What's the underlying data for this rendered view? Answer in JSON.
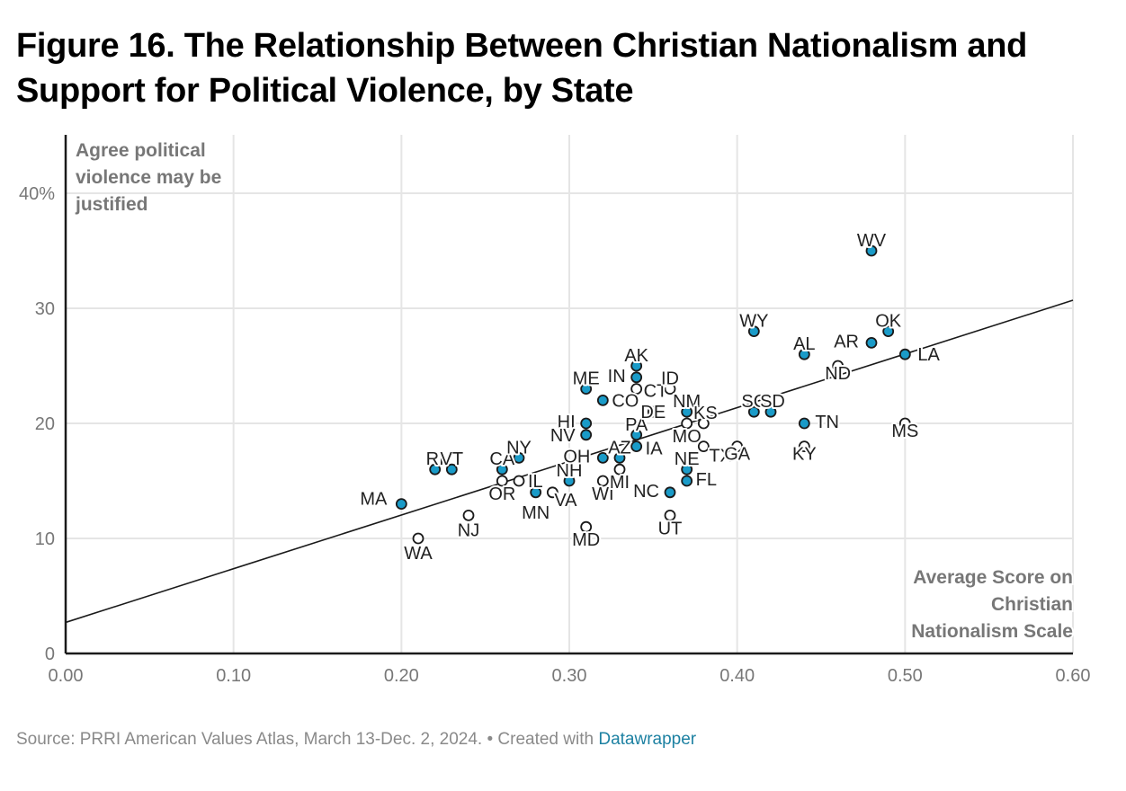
{
  "title": "Figure 16. The Relationship Between Christian Nationalism and Support for Political Violence, by State",
  "footer": {
    "source": "Source: PRRI American Values Atlas, March 13-Dec. 2, 2024.",
    "separator": " • ",
    "created_with": "Created with ",
    "link_text": "Datawrapper"
  },
  "colors": {
    "point_fill": "#1a9bc8",
    "point_stroke": "#1a1a1a",
    "grid": "#e5e5e5",
    "axis": "#1a1a1a",
    "trend": "#1a1a1a"
  },
  "chart_data": {
    "type": "scatter",
    "title": "Figure 16. The Relationship Between Christian Nationalism and Support for Political Violence, by State",
    "xlabel": "Average Score on Christian Nationalism Scale",
    "ylabel": "Agree political violence may be justified",
    "xlim": [
      0,
      0.6
    ],
    "ylim": [
      0,
      45
    ],
    "x_ticks": [
      0,
      0.1,
      0.2,
      0.3,
      0.4,
      0.5,
      0.6
    ],
    "x_tick_labels": [
      "0.00",
      "0.10",
      "0.20",
      "0.30",
      "0.40",
      "0.50",
      "0.60"
    ],
    "y_ticks": [
      0,
      10,
      20,
      30,
      40
    ],
    "y_tick_labels": [
      "0",
      "10",
      "20",
      "30",
      "40%"
    ],
    "grid": true,
    "trendline": {
      "x": [
        0,
        0.6
      ],
      "y": [
        2.7,
        30.7
      ]
    },
    "points": [
      {
        "state": "MA",
        "x": 0.2,
        "y": 13,
        "filled": true,
        "lx": -16,
        "ly": -6,
        "anchor": "end"
      },
      {
        "state": "WA",
        "x": 0.21,
        "y": 10,
        "filled": false,
        "lx": 0,
        "ly": 16,
        "anchor": "middle"
      },
      {
        "state": "RI",
        "x": 0.22,
        "y": 16,
        "filled": true,
        "lx": 0,
        "ly": -12,
        "anchor": "middle"
      },
      {
        "state": "VT",
        "x": 0.23,
        "y": 16,
        "filled": true,
        "lx": 0,
        "ly": -12,
        "anchor": "middle"
      },
      {
        "state": "NJ",
        "x": 0.24,
        "y": 12,
        "filled": false,
        "lx": 0,
        "ly": 16,
        "anchor": "middle"
      },
      {
        "state": "CA",
        "x": 0.26,
        "y": 16,
        "filled": true,
        "lx": 0,
        "ly": -12,
        "anchor": "middle"
      },
      {
        "state": "OR",
        "x": 0.26,
        "y": 15,
        "filled": false,
        "lx": 0,
        "ly": 14,
        "anchor": "middle"
      },
      {
        "state": "NY",
        "x": 0.27,
        "y": 17,
        "filled": true,
        "lx": 0,
        "ly": -12,
        "anchor": "middle"
      },
      {
        "state": "IL",
        "x": 0.27,
        "y": 15,
        "filled": false,
        "lx": 10,
        "ly": 0,
        "anchor": "start"
      },
      {
        "state": "MN",
        "x": 0.28,
        "y": 14,
        "filled": true,
        "lx": 0,
        "ly": 22,
        "anchor": "middle"
      },
      {
        "state": "VA",
        "x": 0.29,
        "y": 14,
        "filled": false,
        "lx": 2,
        "ly": 8,
        "anchor": "start"
      },
      {
        "state": "NH",
        "x": 0.3,
        "y": 15,
        "filled": true,
        "lx": 0,
        "ly": -12,
        "anchor": "middle"
      },
      {
        "state": "MD",
        "x": 0.31,
        "y": 11,
        "filled": false,
        "lx": 0,
        "ly": 14,
        "anchor": "middle"
      },
      {
        "state": "ME",
        "x": 0.31,
        "y": 23,
        "filled": true,
        "lx": 0,
        "ly": -12,
        "anchor": "middle"
      },
      {
        "state": "HI",
        "x": 0.31,
        "y": 20,
        "filled": true,
        "lx": -12,
        "ly": -2,
        "anchor": "end"
      },
      {
        "state": "NV",
        "x": 0.31,
        "y": 19,
        "filled": true,
        "lx": -12,
        "ly": 0,
        "anchor": "end"
      },
      {
        "state": "OH",
        "x": 0.32,
        "y": 17,
        "filled": true,
        "lx": -14,
        "ly": -2,
        "anchor": "end"
      },
      {
        "state": "WI",
        "x": 0.32,
        "y": 15,
        "filled": false,
        "lx": 0,
        "ly": 14,
        "anchor": "middle"
      },
      {
        "state": "CO",
        "x": 0.32,
        "y": 22,
        "filled": true,
        "lx": 10,
        "ly": 0,
        "anchor": "start"
      },
      {
        "state": "AZ",
        "x": 0.33,
        "y": 17,
        "filled": true,
        "lx": 0,
        "ly": -12,
        "anchor": "middle"
      },
      {
        "state": "MI",
        "x": 0.33,
        "y": 16,
        "filled": false,
        "lx": 0,
        "ly": 14,
        "anchor": "middle"
      },
      {
        "state": "AK",
        "x": 0.34,
        "y": 25,
        "filled": true,
        "lx": 0,
        "ly": -12,
        "anchor": "middle"
      },
      {
        "state": "IN",
        "x": 0.34,
        "y": 24,
        "filled": true,
        "lx": -12,
        "ly": -2,
        "anchor": "end"
      },
      {
        "state": "CT",
        "x": 0.34,
        "y": 23,
        "filled": false,
        "lx": 8,
        "ly": 2,
        "anchor": "start"
      },
      {
        "state": "PA",
        "x": 0.34,
        "y": 19,
        "filled": true,
        "lx": 0,
        "ly": -12,
        "anchor": "middle"
      },
      {
        "state": "IA",
        "x": 0.34,
        "y": 18,
        "filled": true,
        "lx": 10,
        "ly": 2,
        "anchor": "start"
      },
      {
        "state": "DE",
        "x": 0.35,
        "y": 21,
        "filled": false,
        "lx": 0,
        "ly": 0,
        "anchor": "middle"
      },
      {
        "state": "NC",
        "x": 0.36,
        "y": 14,
        "filled": true,
        "lx": -12,
        "ly": -2,
        "anchor": "end"
      },
      {
        "state": "UT",
        "x": 0.36,
        "y": 12,
        "filled": false,
        "lx": 0,
        "ly": 14,
        "anchor": "middle"
      },
      {
        "state": "ID",
        "x": 0.36,
        "y": 23,
        "filled": false,
        "lx": 0,
        "ly": -12,
        "anchor": "middle"
      },
      {
        "state": "NM",
        "x": 0.37,
        "y": 21,
        "filled": true,
        "lx": 0,
        "ly": -12,
        "anchor": "middle"
      },
      {
        "state": "MO",
        "x": 0.37,
        "y": 20,
        "filled": false,
        "lx": 0,
        "ly": 14,
        "anchor": "middle"
      },
      {
        "state": "NE",
        "x": 0.37,
        "y": 16,
        "filled": true,
        "lx": 0,
        "ly": -12,
        "anchor": "middle"
      },
      {
        "state": "FL",
        "x": 0.37,
        "y": 15,
        "filled": true,
        "lx": 10,
        "ly": -2,
        "anchor": "start"
      },
      {
        "state": "KS",
        "x": 0.38,
        "y": 20,
        "filled": false,
        "lx": 2,
        "ly": -12,
        "anchor": "middle"
      },
      {
        "state": "TX",
        "x": 0.38,
        "y": 18,
        "filled": false,
        "lx": 6,
        "ly": 10,
        "anchor": "start"
      },
      {
        "state": "GA",
        "x": 0.4,
        "y": 18,
        "filled": false,
        "lx": 0,
        "ly": 8,
        "anchor": "middle"
      },
      {
        "state": "SC",
        "x": 0.41,
        "y": 21,
        "filled": true,
        "lx": 0,
        "ly": -12,
        "anchor": "middle"
      },
      {
        "state": "SD",
        "x": 0.42,
        "y": 21,
        "filled": true,
        "lx": 2,
        "ly": -12,
        "anchor": "middle"
      },
      {
        "state": "WY",
        "x": 0.41,
        "y": 28,
        "filled": true,
        "lx": 0,
        "ly": -12,
        "anchor": "middle"
      },
      {
        "state": "AL",
        "x": 0.44,
        "y": 26,
        "filled": true,
        "lx": 0,
        "ly": -12,
        "anchor": "middle"
      },
      {
        "state": "TN",
        "x": 0.44,
        "y": 20,
        "filled": true,
        "lx": 12,
        "ly": -2,
        "anchor": "start"
      },
      {
        "state": "KY",
        "x": 0.44,
        "y": 18,
        "filled": false,
        "lx": 0,
        "ly": 8,
        "anchor": "middle"
      },
      {
        "state": "ND",
        "x": 0.46,
        "y": 25,
        "filled": false,
        "lx": 0,
        "ly": 8,
        "anchor": "middle"
      },
      {
        "state": "AR",
        "x": 0.48,
        "y": 27,
        "filled": true,
        "lx": -14,
        "ly": -2,
        "anchor": "end"
      },
      {
        "state": "WV",
        "x": 0.48,
        "y": 35,
        "filled": true,
        "lx": 0,
        "ly": -12,
        "anchor": "middle"
      },
      {
        "state": "OK",
        "x": 0.49,
        "y": 28,
        "filled": true,
        "lx": 0,
        "ly": -12,
        "anchor": "middle"
      },
      {
        "state": "LA",
        "x": 0.5,
        "y": 26,
        "filled": true,
        "lx": 14,
        "ly": 0,
        "anchor": "start"
      },
      {
        "state": "MS",
        "x": 0.5,
        "y": 20,
        "filled": false,
        "lx": 0,
        "ly": 8,
        "anchor": "middle"
      }
    ]
  }
}
